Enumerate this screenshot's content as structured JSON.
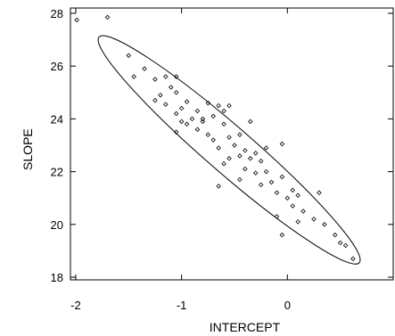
{
  "chart_data": {
    "type": "scatter",
    "xlabel": "INTERCEPT",
    "ylabel": "SLOPE",
    "xlim": [
      -2.05,
      1.0
    ],
    "ylim": [
      17.9,
      28.2
    ],
    "x_ticks": [
      -2,
      -1,
      0
    ],
    "y_ticks": [
      18,
      20,
      22,
      24,
      26,
      28
    ],
    "x_tick_labels": [
      "-2",
      "-1",
      "0"
    ],
    "y_tick_labels": [
      "18",
      "20",
      "22",
      "24",
      "26",
      "28"
    ],
    "grid": false,
    "ellipse": {
      "type": "confidence-ellipse",
      "cx": -0.55,
      "cy": 22.8,
      "rx": 1.35,
      "ry": 0.4,
      "angle_deg": -32
    },
    "points": [
      {
        "x": -1.99,
        "y": 27.75
      },
      {
        "x": -1.7,
        "y": 27.85
      },
      {
        "x": -1.5,
        "y": 26.4
      },
      {
        "x": -1.35,
        "y": 25.9
      },
      {
        "x": -1.45,
        "y": 25.6
      },
      {
        "x": -1.25,
        "y": 25.5
      },
      {
        "x": -1.15,
        "y": 25.6
      },
      {
        "x": -1.05,
        "y": 25.6
      },
      {
        "x": -1.1,
        "y": 25.2
      },
      {
        "x": -1.2,
        "y": 24.9
      },
      {
        "x": -1.05,
        "y": 25.0
      },
      {
        "x": -1.25,
        "y": 24.7
      },
      {
        "x": -1.15,
        "y": 24.55
      },
      {
        "x": -1.0,
        "y": 24.4
      },
      {
        "x": -0.95,
        "y": 24.65
      },
      {
        "x": -0.85,
        "y": 24.3
      },
      {
        "x": -1.05,
        "y": 24.2
      },
      {
        "x": -0.9,
        "y": 24.0
      },
      {
        "x": -0.95,
        "y": 23.8
      },
      {
        "x": -0.8,
        "y": 23.9
      },
      {
        "x": -0.7,
        "y": 24.1
      },
      {
        "x": -0.75,
        "y": 24.6
      },
      {
        "x": -0.65,
        "y": 24.5
      },
      {
        "x": -0.6,
        "y": 24.3
      },
      {
        "x": -0.55,
        "y": 24.5
      },
      {
        "x": -0.85,
        "y": 23.6
      },
      {
        "x": -0.75,
        "y": 23.4
      },
      {
        "x": -1.05,
        "y": 23.5
      },
      {
        "x": -0.7,
        "y": 23.2
      },
      {
        "x": -0.6,
        "y": 23.8
      },
      {
        "x": -0.55,
        "y": 23.3
      },
      {
        "x": -0.5,
        "y": 23.0
      },
      {
        "x": -0.65,
        "y": 22.9
      },
      {
        "x": -0.45,
        "y": 23.4
      },
      {
        "x": -0.4,
        "y": 22.8
      },
      {
        "x": -0.45,
        "y": 22.6
      },
      {
        "x": -0.55,
        "y": 22.5
      },
      {
        "x": -0.35,
        "y": 22.5
      },
      {
        "x": -0.3,
        "y": 22.7
      },
      {
        "x": -0.25,
        "y": 22.4
      },
      {
        "x": -0.2,
        "y": 22.0
      },
      {
        "x": -0.3,
        "y": 21.95
      },
      {
        "x": -0.4,
        "y": 22.1
      },
      {
        "x": -0.6,
        "y": 22.3
      },
      {
        "x": -0.35,
        "y": 23.9
      },
      {
        "x": -0.45,
        "y": 21.7
      },
      {
        "x": -0.25,
        "y": 21.5
      },
      {
        "x": -0.15,
        "y": 21.6
      },
      {
        "x": -0.1,
        "y": 21.2
      },
      {
        "x": -0.05,
        "y": 21.8
      },
      {
        "x": 0.05,
        "y": 21.3
      },
      {
        "x": 0.0,
        "y": 21.0
      },
      {
        "x": 0.1,
        "y": 21.1
      },
      {
        "x": -0.65,
        "y": 21.45
      },
      {
        "x": -0.1,
        "y": 20.3
      },
      {
        "x": 0.05,
        "y": 20.7
      },
      {
        "x": 0.15,
        "y": 20.5
      },
      {
        "x": 0.25,
        "y": 20.2
      },
      {
        "x": 0.1,
        "y": 20.1
      },
      {
        "x": -0.05,
        "y": 19.6
      },
      {
        "x": 0.3,
        "y": 21.2
      },
      {
        "x": 0.35,
        "y": 20.0
      },
      {
        "x": 0.45,
        "y": 19.6
      },
      {
        "x": 0.5,
        "y": 19.3
      },
      {
        "x": 0.55,
        "y": 19.2
      },
      {
        "x": 0.62,
        "y": 18.7
      },
      {
        "x": -0.05,
        "y": 23.05
      },
      {
        "x": -0.2,
        "y": 22.9
      },
      {
        "x": -0.8,
        "y": 24.0
      },
      {
        "x": -1.0,
        "y": 23.9
      }
    ]
  }
}
